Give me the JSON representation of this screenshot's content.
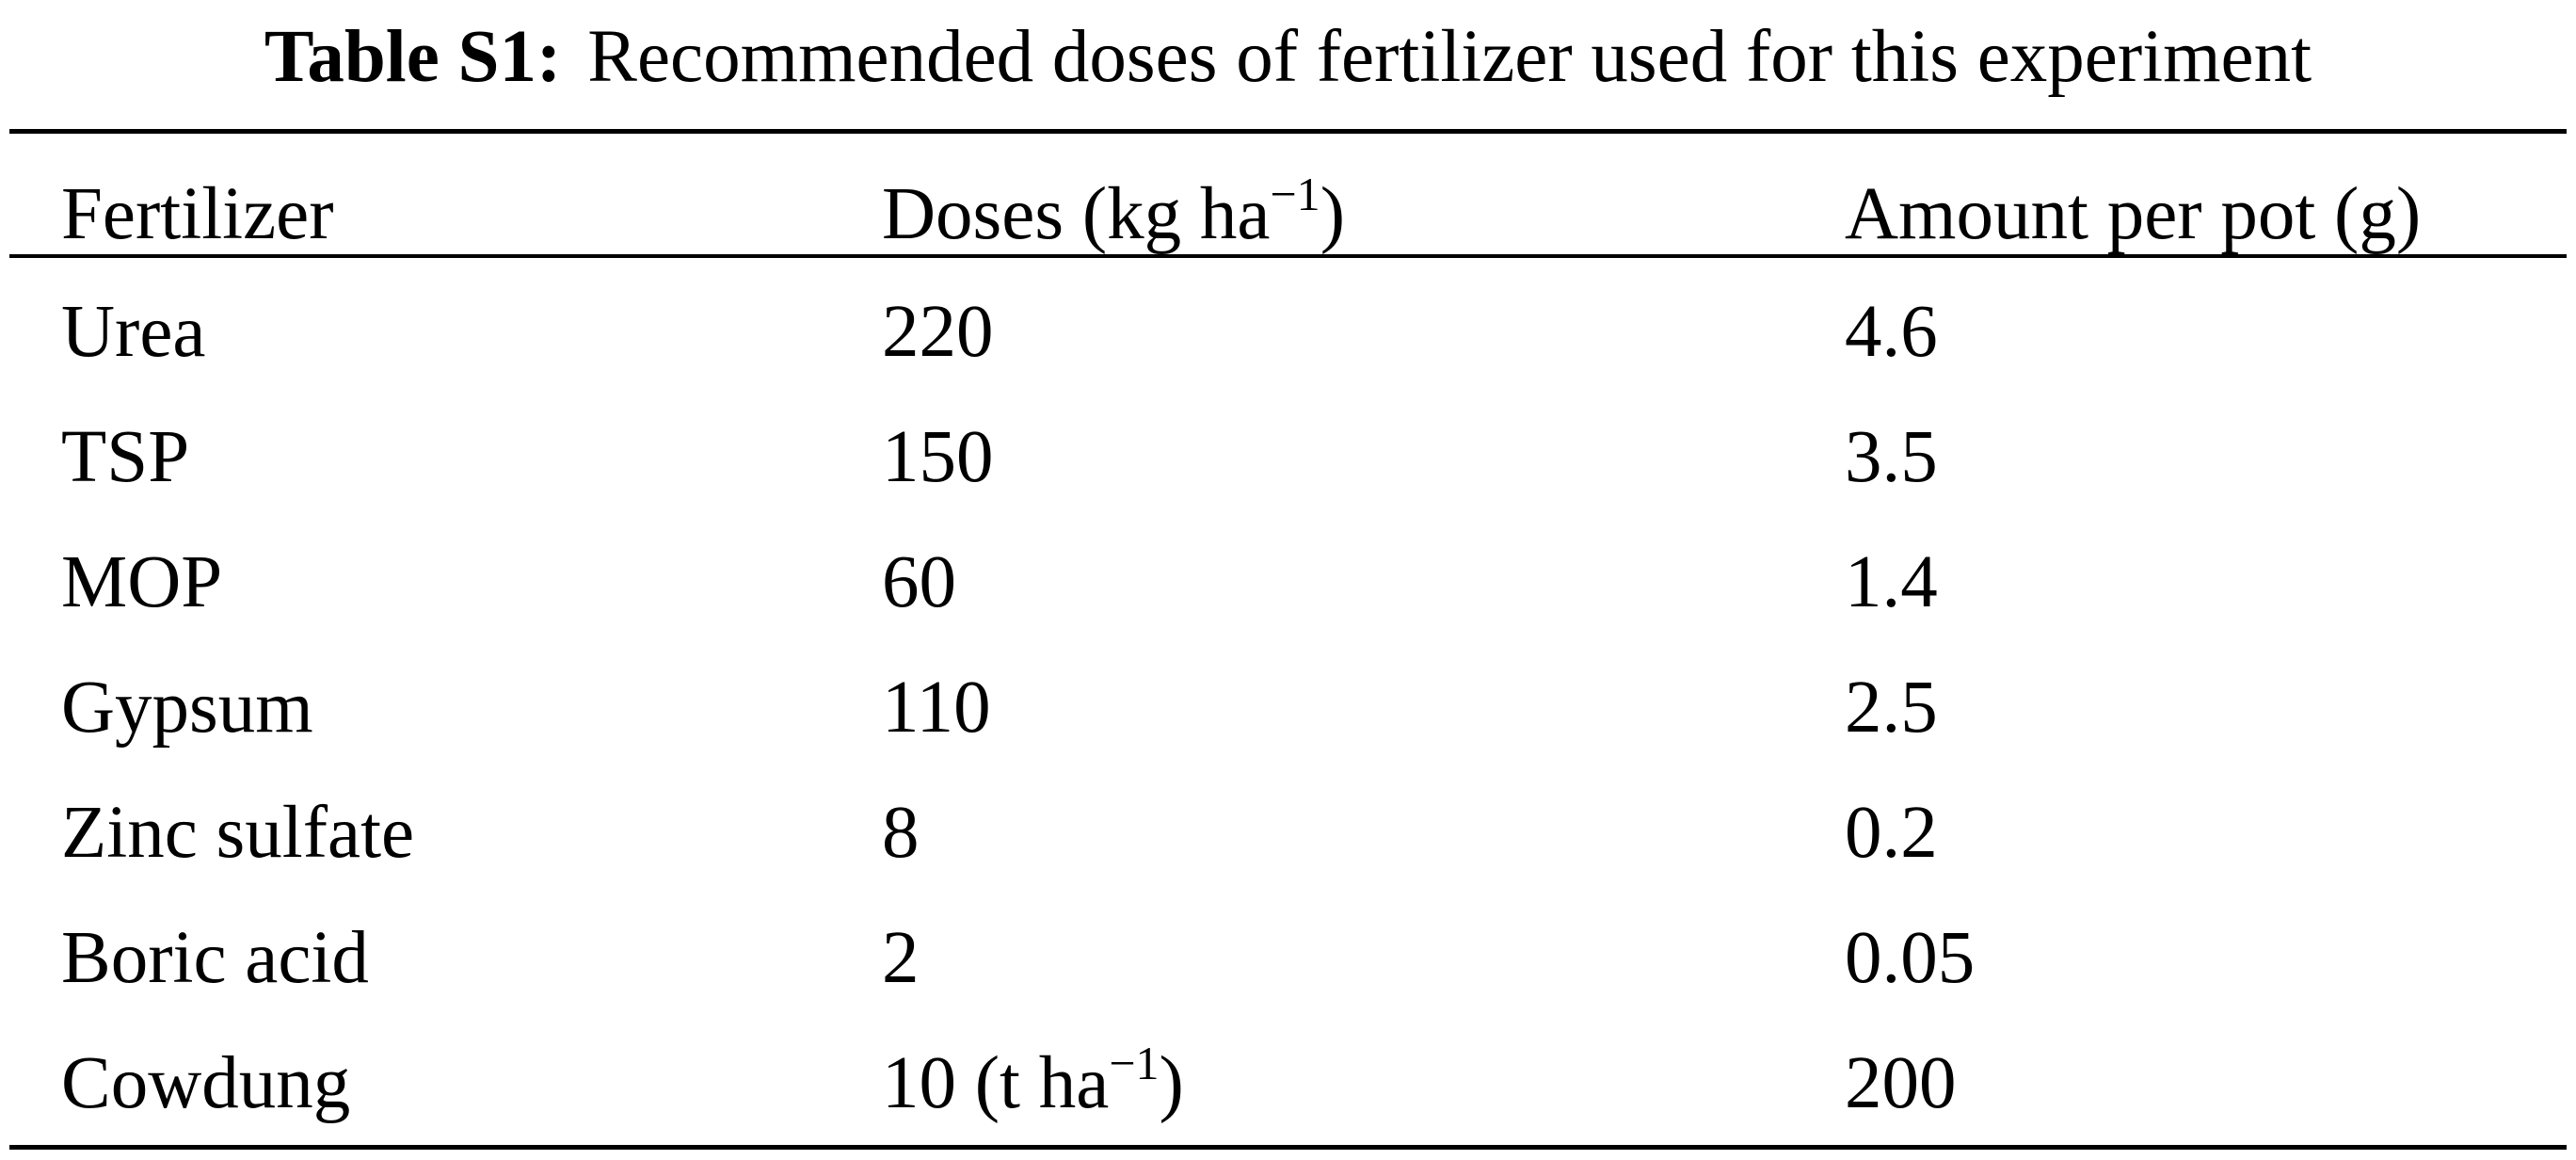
{
  "caption": {
    "label": "Table S1:",
    "text": "Recommended doses of fertilizer used for this experiment"
  },
  "table": {
    "headers": {
      "fertilizer": "Fertilizer",
      "doses_pre": "Doses (kg ha",
      "doses_sup": "−1",
      "doses_post": ")",
      "amount": "Amount per pot (g)"
    },
    "rows": [
      {
        "fertilizer": "Urea",
        "dose": "220",
        "dose_sup": "",
        "dose_post": "",
        "amount": "4.6"
      },
      {
        "fertilizer": "TSP",
        "dose": "150",
        "dose_sup": "",
        "dose_post": "",
        "amount": "3.5"
      },
      {
        "fertilizer": "MOP",
        "dose": "60",
        "dose_sup": "",
        "dose_post": "",
        "amount": "1.4"
      },
      {
        "fertilizer": "Gypsum",
        "dose": "110",
        "dose_sup": "",
        "dose_post": "",
        "amount": "2.5"
      },
      {
        "fertilizer": "Zinc sulfate",
        "dose": "8",
        "dose_sup": "",
        "dose_post": "",
        "amount": "0.2"
      },
      {
        "fertilizer": "Boric acid",
        "dose": "2",
        "dose_sup": "",
        "dose_post": "",
        "amount": "0.05"
      },
      {
        "fertilizer": "Cowdung",
        "dose": "10 (t ha",
        "dose_sup": "−1",
        "dose_post": ")",
        "amount": "200"
      }
    ]
  }
}
